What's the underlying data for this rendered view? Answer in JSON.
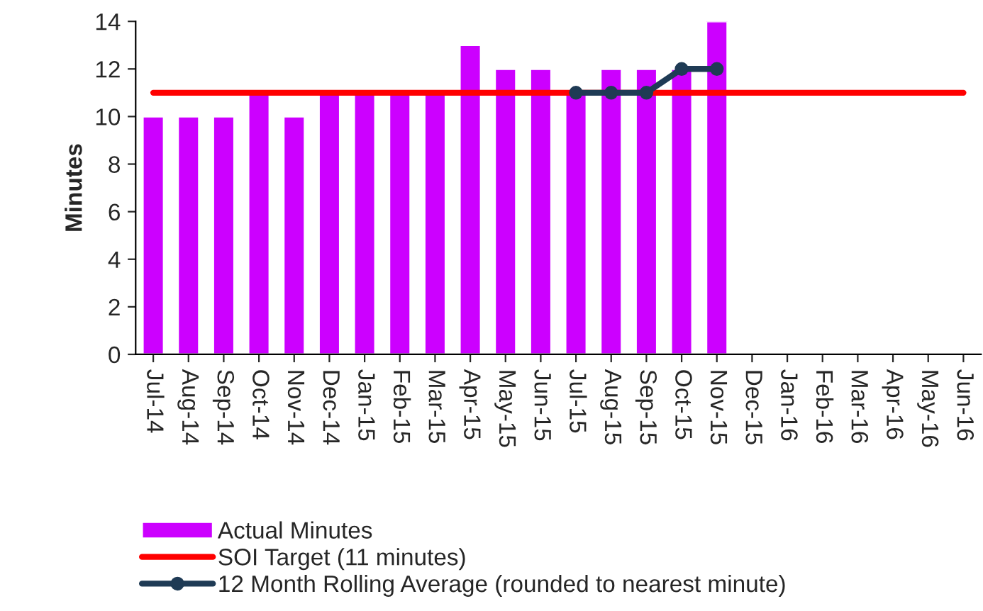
{
  "chart_data": {
    "type": "bar",
    "ylabel": "Minutes",
    "categories": [
      "Jul-14",
      "Aug-14",
      "Sep-14",
      "Oct-14",
      "Nov-14",
      "Dec-14",
      "Jan-15",
      "Feb-15",
      "Mar-15",
      "Apr-15",
      "May-15",
      "Jun-15",
      "Jul-15",
      "Aug-15",
      "Sep-15",
      "Oct-15",
      "Nov-15",
      "Dec-15",
      "Jan-16",
      "Feb-16",
      "Mar-16",
      "Apr-16",
      "May-16",
      "Jun-16"
    ],
    "series": [
      {
        "name": "Actual Minutes",
        "color": "#cc00ff",
        "values": [
          10,
          10,
          10,
          11,
          10,
          11,
          11,
          11,
          11,
          13,
          12,
          12,
          11,
          12,
          12,
          12,
          14,
          null,
          null,
          null,
          null,
          null,
          null,
          null
        ]
      },
      {
        "name": "SOI Target (11 minutes)",
        "type": "line",
        "color": "#ff0000",
        "marker": "none",
        "values": [
          11,
          11,
          11,
          11,
          11,
          11,
          11,
          11,
          11,
          11,
          11,
          11,
          11,
          11,
          11,
          11,
          11,
          11,
          11,
          11,
          11,
          11,
          11,
          11
        ]
      },
      {
        "name": "12 Month Rolling Average (rounded to nearest minute)",
        "type": "line",
        "color": "#1f3b55",
        "marker": "circle",
        "values": [
          null,
          null,
          null,
          null,
          null,
          null,
          null,
          null,
          null,
          null,
          null,
          null,
          11,
          11,
          11,
          12,
          12,
          null,
          null,
          null,
          null,
          null,
          null,
          null
        ]
      }
    ],
    "ylim": [
      0,
      14
    ],
    "yticks": [
      0,
      2,
      4,
      6,
      8,
      10,
      12,
      14
    ],
    "grid": false,
    "legend": "bottom"
  }
}
